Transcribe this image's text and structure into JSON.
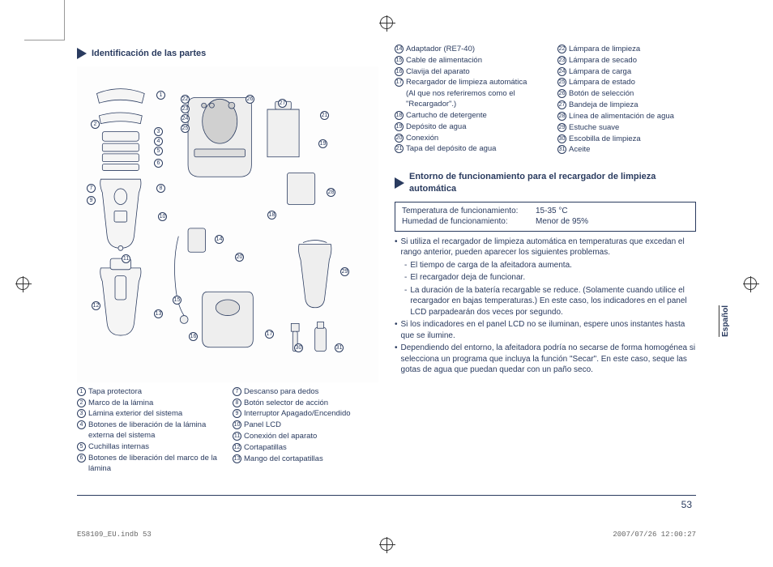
{
  "colors": {
    "primary": "#2a3b5f",
    "text": "#2a3b5f",
    "bg": "#ffffff"
  },
  "section1_title": "Identificación de las partes",
  "section2_title": "Entorno de funcionamiento para el recargador de limpieza automática",
  "parts_left": [
    {
      "n": "1",
      "t": "Tapa protectora"
    },
    {
      "n": "2",
      "t": "Marco de la lámina"
    },
    {
      "n": "3",
      "t": "Lámina exterior del sistema"
    },
    {
      "n": "4",
      "t": "Botones de liberación de la lámina externa del sistema"
    },
    {
      "n": "5",
      "t": "Cuchillas internas"
    },
    {
      "n": "6",
      "t": "Botones de liberación del marco de la lámina"
    }
  ],
  "parts_mid": [
    {
      "n": "7",
      "t": "Descanso para dedos"
    },
    {
      "n": "8",
      "t": "Botón selector de acción"
    },
    {
      "n": "9",
      "t": "Interruptor Apagado/Encendido"
    },
    {
      "n": "10",
      "t": "Panel LCD"
    },
    {
      "n": "11",
      "t": "Conexión del aparato"
    },
    {
      "n": "12",
      "t": "Cortapatillas"
    },
    {
      "n": "13",
      "t": "Mango del cortapatillas"
    }
  ],
  "parts_col1": [
    {
      "n": "14",
      "t": "Adaptador (RE7-40)"
    },
    {
      "n": "15",
      "t": "Cable de alimentación"
    },
    {
      "n": "16",
      "t": "Clavija del aparato"
    },
    {
      "n": "17",
      "t": "Recargador de limpieza automática"
    },
    {
      "n": "",
      "t": "(Al que nos referiremos como el \"Recargador\".)"
    },
    {
      "n": "18",
      "t": "Cartucho de detergente"
    },
    {
      "n": "19",
      "t": "Depósito de agua"
    },
    {
      "n": "20",
      "t": "Conexión"
    },
    {
      "n": "21",
      "t": "Tapa del depósito de agua"
    }
  ],
  "parts_col2": [
    {
      "n": "22",
      "t": "Lámpara de limpieza"
    },
    {
      "n": "23",
      "t": "Lámpara de secado"
    },
    {
      "n": "24",
      "t": "Lámpara de carga"
    },
    {
      "n": "25",
      "t": "Lámpara de estado"
    },
    {
      "n": "26",
      "t": "Botón de selección"
    },
    {
      "n": "27",
      "t": "Bandeja de limpieza"
    },
    {
      "n": "28",
      "t": "Línea de alimentación de agua"
    },
    {
      "n": "29",
      "t": "Estuche suave"
    },
    {
      "n": "30",
      "t": "Escobilla de limpieza"
    },
    {
      "n": "31",
      "t": "Aceite"
    }
  ],
  "info": {
    "temp_label": "Temperatura de funcionamiento:",
    "temp_value": "15-35 °C",
    "hum_label": "Humedad de funcionamiento:",
    "hum_value": "Menor de 95%"
  },
  "bullets": [
    {
      "text": "Si utiliza el recargador de limpieza automática en temperaturas que excedan el rango anterior, pueden aparecer los siguientes problemas.",
      "subs": [
        "El tiempo de carga de la afeitadora aumenta.",
        "El recargador deja de funcionar.",
        "La duración de la batería recargable se reduce. (Solamente cuando utilice el recargador en bajas temperaturas.) En este caso, los indicadores en el panel LCD parpadearán dos veces por segundo."
      ]
    },
    {
      "text": "Si los indicadores en el panel LCD no se iluminan, espere unos instantes hasta que se ilumine.",
      "subs": []
    },
    {
      "text": "Dependiendo del entorno, la afeitadora podría no secarse de forma homogénea si selecciona un programa que incluya la función \"Secar\". En este caso, seque las gotas de agua que puedan quedar con un paño seco.",
      "subs": []
    }
  ],
  "lang_tab": "Español",
  "page_number": "53",
  "footer_left": "ES8109_EU.indb   53",
  "footer_right": "2007/07/26   12:00:27",
  "diagram_callouts": [
    "1",
    "2",
    "3",
    "4",
    "5",
    "6",
    "7",
    "8",
    "9",
    "10",
    "11",
    "12",
    "13",
    "14",
    "15",
    "16",
    "17",
    "18",
    "19",
    "20",
    "21",
    "22",
    "23",
    "24",
    "25",
    "26",
    "27",
    "28",
    "29",
    "30",
    "31"
  ]
}
